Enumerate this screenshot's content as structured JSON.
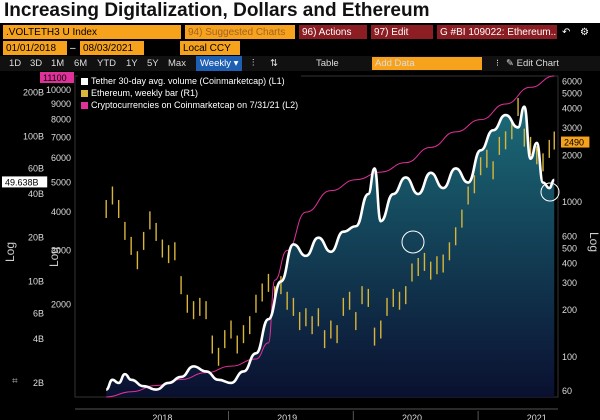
{
  "title": "Increasing Digitalization, Dollars and Ethereum",
  "toolbar": {
    "ticker": ".VOLTETH3 U Index",
    "suggested": "94) Suggested Charts",
    "actions": "96) Actions",
    "edit": "97) Edit",
    "bi": "G #BI 109022: Ethereum...",
    "start_date": "01/01/2018",
    "end_date": "08/03/2021",
    "currency": "Local CCY",
    "periods": [
      "1D",
      "3D",
      "1M",
      "6M",
      "YTD",
      "1Y",
      "5Y",
      "Max"
    ],
    "frequency": "Weekly",
    "table_label": "Table",
    "add_data": "Add Data",
    "edit_chart": "Edit Chart"
  },
  "colors": {
    "tether": "#ffffff",
    "ethereum": "#d9b53a",
    "crypto": "#e0309a",
    "area_top": "#1b6b78",
    "area_bottom": "#0a1030"
  },
  "chart_data": {
    "type": "line",
    "legend": [
      {
        "name": "Tether 30-day avg. volume (Coinmarketcap) (L1)",
        "color": "#ffffff"
      },
      {
        "name": "Ethereum, weekly bar (R1)",
        "color": "#d9b53a"
      },
      {
        "name": "Cryptocurrencies on Coinmarketcap on 7/31/21 (L2)",
        "color": "#e0309a"
      }
    ],
    "x_ticks": [
      "2018",
      "2019",
      "2020",
      "2021"
    ],
    "left_axis": {
      "scale": "log",
      "label": "Log",
      "ylim": [
        1.6,
        260
      ],
      "ticks": [
        [
          "200B",
          200
        ],
        [
          "100B",
          100
        ],
        [
          "60B",
          60
        ],
        [
          "40B",
          40
        ],
        [
          "20B",
          20
        ],
        [
          "10B",
          10
        ],
        [
          "6B",
          6
        ],
        [
          "4B",
          4
        ],
        [
          "2B",
          2
        ]
      ]
    },
    "left_axis_2": {
      "scale": "log",
      "label": "Log",
      "ylim": [
        1000,
        11100
      ],
      "ticks": [
        [
          "10000",
          10000
        ],
        [
          "9000",
          9000
        ],
        [
          "8000",
          8000
        ],
        [
          "7000",
          7000
        ],
        [
          "6000",
          6000
        ],
        [
          "5000",
          5000
        ],
        [
          "4000",
          4000
        ],
        [
          "3000",
          3000
        ],
        [
          "2000",
          2000
        ]
      ]
    },
    "right_axis": {
      "scale": "log",
      "label": "Log",
      "ylim": [
        55,
        6500
      ],
      "ticks": [
        [
          "6000",
          6000
        ],
        [
          "5000",
          5000
        ],
        [
          "4000",
          4000
        ],
        [
          "3000",
          3000
        ],
        [
          "2000",
          2000
        ],
        [
          "1000",
          1000
        ],
        [
          "600",
          600
        ],
        [
          "500",
          500
        ],
        [
          "400",
          400
        ],
        [
          "300",
          300
        ],
        [
          "200",
          200
        ],
        [
          "100",
          100
        ],
        [
          "60",
          60
        ]
      ]
    },
    "last_values": {
      "crypto": "11100",
      "tether": "49.638B",
      "ethereum": "2490"
    },
    "series": [
      {
        "name": "Tether 30-day avg. volume (Coinmarketcap) (L1)",
        "axis": "left",
        "x": [
          2018.0,
          2018.05,
          2018.1,
          2018.15,
          2018.2,
          2018.3,
          2018.4,
          2018.5,
          2018.6,
          2018.7,
          2018.8,
          2018.9,
          2019.0,
          2019.1,
          2019.2,
          2019.3,
          2019.4,
          2019.5,
          2019.6,
          2019.7,
          2019.8,
          2019.9,
          2020.0,
          2020.1,
          2020.15,
          2020.2,
          2020.3,
          2020.4,
          2020.5,
          2020.6,
          2020.7,
          2020.8,
          2020.9,
          2021.0,
          2021.1,
          2021.2,
          2021.3,
          2021.35,
          2021.4,
          2021.45,
          2021.5,
          2021.55,
          2021.59
        ],
        "y": [
          1.8,
          2.1,
          2.0,
          2.3,
          2.1,
          1.9,
          1.8,
          2.0,
          2.2,
          2.6,
          2.4,
          2.1,
          2.0,
          2.4,
          3.2,
          5.5,
          10,
          18,
          15,
          20,
          16,
          22,
          24,
          40,
          60,
          26,
          40,
          52,
          40,
          56,
          44,
          60,
          48,
          80,
          110,
          140,
          115,
          160,
          70,
          90,
          48,
          44,
          50
        ]
      },
      {
        "name": "Ethereum, weekly bar (R1)",
        "axis": "right",
        "x": [
          2018.0,
          2018.05,
          2018.1,
          2018.15,
          2018.2,
          2018.25,
          2018.3,
          2018.35,
          2018.4,
          2018.45,
          2018.5,
          2018.55,
          2018.6,
          2018.65,
          2018.7,
          2018.75,
          2018.8,
          2018.85,
          2018.9,
          2018.95,
          2019.0,
          2019.05,
          2019.1,
          2019.15,
          2019.2,
          2019.25,
          2019.3,
          2019.35,
          2019.4,
          2019.45,
          2019.5,
          2019.55,
          2019.6,
          2019.65,
          2019.7,
          2019.75,
          2019.8,
          2019.85,
          2019.9,
          2019.95,
          2020.0,
          2020.05,
          2020.1,
          2020.15,
          2020.2,
          2020.25,
          2020.3,
          2020.35,
          2020.4,
          2020.45,
          2020.5,
          2020.55,
          2020.6,
          2020.65,
          2020.7,
          2020.75,
          2020.8,
          2020.85,
          2020.9,
          2020.95,
          2021.0,
          2021.05,
          2021.1,
          2021.15,
          2021.2,
          2021.25,
          2021.3,
          2021.35,
          2021.4,
          2021.45,
          2021.5,
          2021.55,
          2021.59
        ],
        "y": [
          900,
          1100,
          900,
          650,
          520,
          420,
          560,
          760,
          640,
          500,
          460,
          480,
          290,
          220,
          200,
          210,
          200,
          120,
          100,
          130,
          150,
          120,
          140,
          160,
          220,
          260,
          300,
          250,
          290,
          230,
          210,
          170,
          180,
          160,
          180,
          130,
          150,
          140,
          210,
          230,
          170,
          250,
          240,
          135,
          150,
          210,
          240,
          230,
          250,
          350,
          380,
          410,
          360,
          390,
          400,
          480,
          600,
          780,
          1100,
          1300,
          1700,
          1900,
          1600,
          2300,
          2500,
          2900,
          4100,
          2600,
          2300,
          2000,
          1800,
          2200,
          2490
        ]
      },
      {
        "name": "Cryptocurrencies on Coinmarketcap on 7/31/21 (L2)",
        "axis": "left2",
        "x": [
          2018.0,
          2018.2,
          2018.4,
          2018.6,
          2018.8,
          2019.0,
          2019.2,
          2019.3,
          2019.35,
          2019.45,
          2019.6,
          2019.8,
          2020.0,
          2020.2,
          2020.4,
          2020.6,
          2020.8,
          2021.0,
          2021.2,
          2021.4,
          2021.59
        ],
        "y": [
          1000,
          1040,
          1090,
          1140,
          1200,
          1260,
          1330,
          1500,
          2400,
          3000,
          4000,
          4700,
          5100,
          5400,
          5800,
          6500,
          7300,
          8000,
          9000,
          10200,
          11100
        ]
      }
    ]
  }
}
